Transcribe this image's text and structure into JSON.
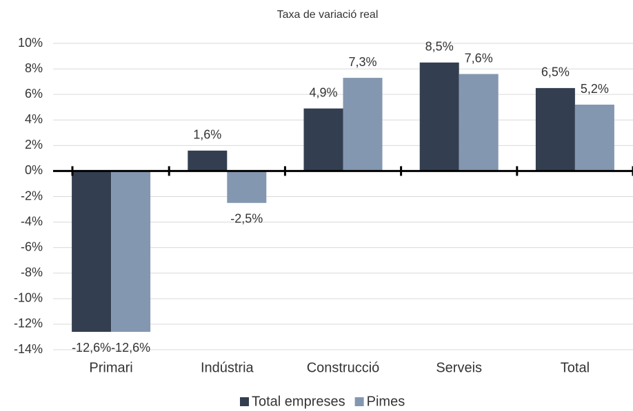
{
  "chart_data": {
    "type": "bar",
    "subtitle": "Taxa de variació real",
    "categories": [
      "Primari",
      "Indústria",
      "Construcció",
      "Serveis",
      "Total"
    ],
    "series": [
      {
        "name": "Total empreses",
        "color": "#333f50",
        "values": [
          -12.6,
          1.6,
          4.9,
          8.5,
          6.5
        ],
        "value_labels": [
          "-12,6%",
          "1,6%",
          "4,9%",
          "8,5%",
          "6,5%"
        ]
      },
      {
        "name": "Pimes",
        "color": "#8497b0",
        "values": [
          -12.6,
          -2.5,
          7.3,
          7.6,
          5.2
        ],
        "value_labels": [
          "-12,6%",
          "-2,5%",
          "7,3%",
          "7,6%",
          "5,2%"
        ]
      }
    ],
    "ylim": [
      -14,
      10
    ],
    "yticks": [
      {
        "value": -14,
        "label": "-14%"
      },
      {
        "value": -12,
        "label": "-12%"
      },
      {
        "value": -10,
        "label": "-10%"
      },
      {
        "value": -8,
        "label": "-8%"
      },
      {
        "value": -6,
        "label": "-6%"
      },
      {
        "value": -4,
        "label": "-4%"
      },
      {
        "value": -2,
        "label": "-2%"
      },
      {
        "value": 0,
        "label": "0%"
      },
      {
        "value": 2,
        "label": "2%"
      },
      {
        "value": 4,
        "label": "4%"
      },
      {
        "value": 6,
        "label": "6%"
      },
      {
        "value": 8,
        "label": "8%"
      },
      {
        "value": 10,
        "label": "10%"
      }
    ],
    "grid": true,
    "legend": "bottom"
  }
}
